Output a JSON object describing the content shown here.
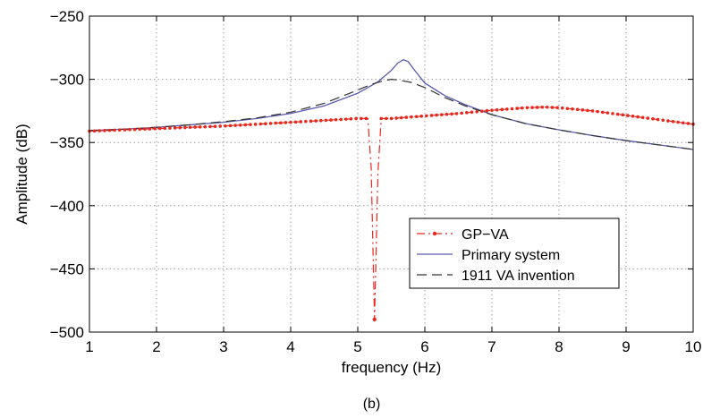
{
  "chart_data": {
    "type": "line",
    "caption": "(b)",
    "xlabel": "frequency (Hz)",
    "ylabel": "Amplitude (dB)",
    "xlim": [
      1,
      10
    ],
    "ylim": [
      -500,
      -250
    ],
    "xticks": [
      1,
      2,
      3,
      4,
      5,
      6,
      7,
      8,
      9,
      10
    ],
    "yticks": [
      -250,
      -300,
      -350,
      -400,
      -450,
      -500
    ],
    "xtick_labels": [
      "1",
      "2",
      "3",
      "4",
      "5",
      "6",
      "7",
      "8",
      "9",
      "10"
    ],
    "ytick_labels": [
      "−250",
      "−300",
      "−350",
      "−400",
      "−450",
      "−500"
    ],
    "grid": true,
    "legend_position": "lower-right",
    "series": [
      {
        "name": "GP−VA",
        "style": "dash-dot-markers",
        "color": "#e8281e",
        "x": [
          1.0,
          1.5,
          2.0,
          2.5,
          3.0,
          3.5,
          4.0,
          4.5,
          5.0,
          5.15,
          5.2,
          5.25,
          5.3,
          5.35,
          5.5,
          6.0,
          6.5,
          7.0,
          7.5,
          7.8,
          8.0,
          8.5,
          9.0,
          9.5,
          10.0
        ],
        "y": [
          -341,
          -340,
          -339,
          -338,
          -337,
          -335.5,
          -334,
          -332.5,
          -331,
          -331,
          -370,
          -490,
          -375,
          -331,
          -331,
          -329,
          -327,
          -324.5,
          -322.5,
          -322,
          -322.5,
          -325,
          -328.5,
          -332,
          -335.5
        ]
      },
      {
        "name": "Primary system",
        "style": "solid",
        "color": "#5a5aae",
        "x": [
          1.0,
          1.5,
          2.0,
          2.5,
          3.0,
          3.5,
          4.0,
          4.5,
          5.0,
          5.3,
          5.5,
          5.6,
          5.68,
          5.75,
          5.85,
          6.0,
          6.3,
          6.6,
          7.0,
          7.5,
          8.0,
          8.5,
          9.0,
          9.5,
          10.0
        ],
        "y": [
          -340.5,
          -339.5,
          -338,
          -336,
          -334,
          -331,
          -327,
          -321,
          -311,
          -302,
          -293,
          -287,
          -284.5,
          -286,
          -293,
          -303,
          -313,
          -320,
          -328,
          -335,
          -340,
          -344.5,
          -348.5,
          -352,
          -355.5
        ]
      },
      {
        "name": "1911 VA invention",
        "style": "dashed",
        "color": "#333333",
        "x": [
          1.0,
          1.5,
          2.0,
          2.5,
          3.0,
          3.5,
          4.0,
          4.5,
          5.0,
          5.2,
          5.4,
          5.5,
          5.6,
          5.8,
          6.0,
          6.3,
          6.6,
          7.0,
          7.5,
          8.0,
          8.5,
          9.0,
          9.5,
          10.0
        ],
        "y": [
          -340.5,
          -339.5,
          -338,
          -336,
          -333.5,
          -330.5,
          -326,
          -319,
          -308.5,
          -304,
          -301,
          -300,
          -300.5,
          -302.5,
          -306.5,
          -314.5,
          -321,
          -328,
          -335,
          -340,
          -344.5,
          -348.5,
          -352,
          -355.5
        ]
      }
    ]
  }
}
